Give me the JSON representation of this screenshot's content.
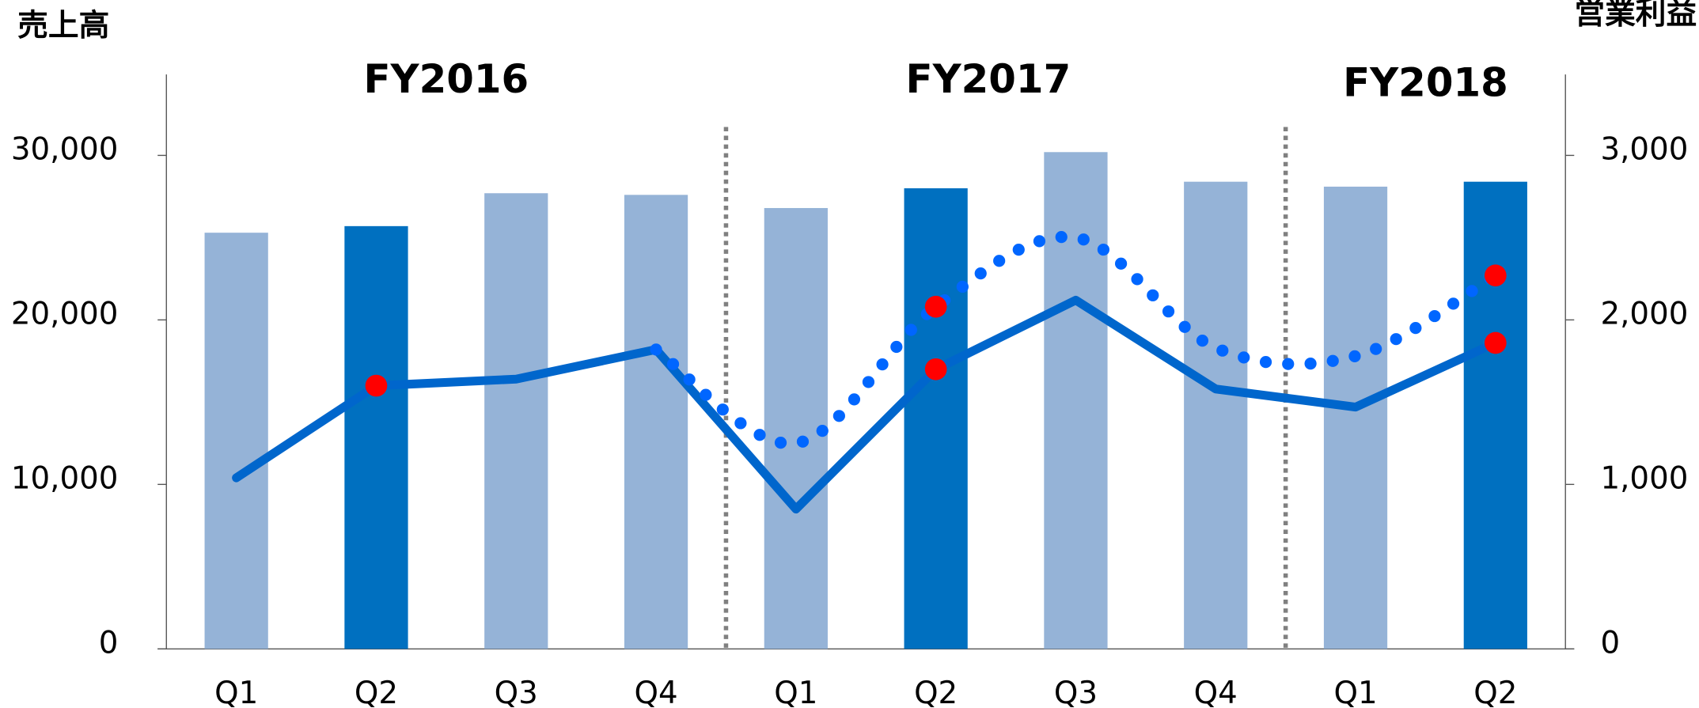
{
  "chart_data": {
    "type": "bar",
    "y_axis_label": "売上高",
    "y2_axis_label": "営業利益",
    "categories": [
      "Q1",
      "Q2",
      "Q3",
      "Q4",
      "Q1",
      "Q2",
      "Q3",
      "Q4",
      "Q1",
      "Q2"
    ],
    "groups": [
      {
        "label": "FY2016",
        "start": 0,
        "end": 3
      },
      {
        "label": "FY2017",
        "start": 4,
        "end": 7
      },
      {
        "label": "FY2018",
        "start": 8,
        "end": 9
      }
    ],
    "series": [
      {
        "type": "bar",
        "values": [
          25300,
          25700,
          27700,
          27600,
          26800,
          28000,
          30200,
          28400,
          28100,
          28400
        ],
        "colors": [
          "#95b3d7",
          "#0070c0",
          "#95b3d7",
          "#95b3d7",
          "#95b3d7",
          "#0070c0",
          "#95b3d7",
          "#95b3d7",
          "#95b3d7",
          "#0070c0"
        ]
      },
      {
        "type": "line",
        "axis": "y2",
        "color": "#0066cc",
        "values": [
          1040,
          1600,
          1640,
          1820,
          850,
          1700,
          2120,
          1580,
          1470,
          1860
        ],
        "marker_color": "#ff0000",
        "marker_indices": [
          1,
          5,
          9
        ]
      },
      {
        "type": "line",
        "axis": "y2",
        "style": "dotted",
        "color": "#0066ff",
        "values": [
          null,
          null,
          null,
          1820,
          1250,
          2080,
          2500,
          1830,
          1780,
          2270
        ],
        "marker_color": "#ff0000",
        "marker_indices": [
          5,
          9
        ]
      }
    ],
    "ylim": [
      0,
      30000
    ],
    "yticks": [
      0,
      {
        "value": 10000,
        "label": "10,000"
      },
      {
        "value": 20000,
        "label": "20,000"
      },
      {
        "value": 30000,
        "label": "30,000"
      }
    ],
    "y2lim": [
      0,
      3000
    ],
    "y2ticks": [
      0,
      {
        "value": 1000,
        "label": "1,000"
      },
      {
        "value": 2000,
        "label": "2,000"
      },
      {
        "value": 3000,
        "label": "3,000"
      }
    ]
  }
}
